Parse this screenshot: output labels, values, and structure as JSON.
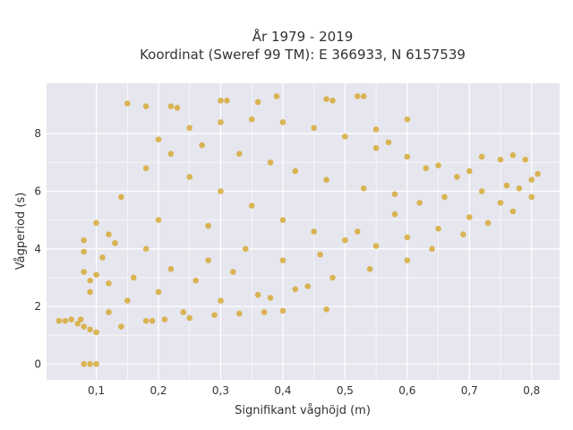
{
  "chart_data": {
    "type": "scatter",
    "title_line1": "År 1979 - 2019",
    "title_line2": "Koordinat (Sweref 99 TM): E 366933, N 6157539",
    "xlabel": "Signifikant våghöjd (m)",
    "ylabel": "Vågperiod (s)",
    "xlim": [
      0.02,
      0.845
    ],
    "ylim": [
      -0.55,
      9.75
    ],
    "x_ticks": [
      "0,1",
      "0,2",
      "0,3",
      "0,4",
      "0,5",
      "0,6",
      "0,7",
      "0,8"
    ],
    "y_ticks": [
      "0",
      "2",
      "4",
      "6",
      "8"
    ],
    "x_tick_values": [
      0.1,
      0.2,
      0.3,
      0.4,
      0.5,
      0.6,
      0.7,
      0.8
    ],
    "y_tick_values": [
      0,
      2,
      4,
      6,
      8
    ],
    "grid": true,
    "marker_color": "#d4a21f",
    "plot_background": "#e6e6ef",
    "series": [
      {
        "values": [
          [
            0.04,
            1.5
          ],
          [
            0.05,
            1.5
          ],
          [
            0.06,
            1.55
          ],
          [
            0.07,
            1.4
          ],
          [
            0.075,
            1.55
          ],
          [
            0.08,
            1.3
          ],
          [
            0.08,
            0.0
          ],
          [
            0.09,
            0.0
          ],
          [
            0.1,
            0.0
          ],
          [
            0.08,
            4.3
          ],
          [
            0.08,
            3.9
          ],
          [
            0.08,
            3.2
          ],
          [
            0.09,
            2.9
          ],
          [
            0.09,
            2.5
          ],
          [
            0.1,
            3.1
          ],
          [
            0.1,
            4.9
          ],
          [
            0.11,
            3.7
          ],
          [
            0.12,
            4.5
          ],
          [
            0.12,
            2.8
          ],
          [
            0.13,
            4.2
          ],
          [
            0.14,
            5.8
          ],
          [
            0.15,
            9.05
          ],
          [
            0.18,
            8.95
          ],
          [
            0.22,
            8.95
          ],
          [
            0.23,
            8.9
          ],
          [
            0.3,
            9.15
          ],
          [
            0.31,
            9.15
          ],
          [
            0.36,
            9.1
          ],
          [
            0.39,
            9.3
          ],
          [
            0.47,
            9.2
          ],
          [
            0.48,
            9.15
          ],
          [
            0.52,
            9.3
          ],
          [
            0.53,
            9.3
          ],
          [
            0.6,
            8.5
          ],
          [
            0.55,
            8.15
          ],
          [
            0.57,
            7.7
          ],
          [
            0.63,
            6.8
          ],
          [
            0.68,
            6.5
          ],
          [
            0.72,
            7.2
          ],
          [
            0.75,
            7.1
          ],
          [
            0.77,
            7.25
          ],
          [
            0.79,
            7.1
          ],
          [
            0.81,
            6.6
          ],
          [
            0.8,
            5.8
          ],
          [
            0.77,
            5.3
          ],
          [
            0.73,
            4.9
          ],
          [
            0.69,
            4.5
          ],
          [
            0.64,
            4.0
          ],
          [
            0.6,
            3.6
          ],
          [
            0.54,
            3.3
          ],
          [
            0.48,
            3.0
          ],
          [
            0.42,
            2.6
          ],
          [
            0.36,
            2.4
          ],
          [
            0.3,
            2.2
          ],
          [
            0.24,
            1.8
          ],
          [
            0.18,
            1.5
          ],
          [
            0.14,
            1.3
          ],
          [
            0.1,
            1.1
          ],
          [
            0.09,
            1.2
          ],
          [
            0.19,
            1.5
          ],
          [
            0.21,
            1.55
          ],
          [
            0.25,
            1.6
          ],
          [
            0.29,
            1.7
          ],
          [
            0.33,
            1.75
          ],
          [
            0.37,
            1.8
          ],
          [
            0.4,
            1.85
          ],
          [
            0.47,
            1.9
          ],
          [
            0.38,
            2.3
          ],
          [
            0.44,
            2.7
          ],
          [
            0.2,
            7.8
          ],
          [
            0.25,
            8.2
          ],
          [
            0.3,
            8.4
          ],
          [
            0.35,
            8.5
          ],
          [
            0.4,
            8.4
          ],
          [
            0.45,
            8.2
          ],
          [
            0.5,
            7.9
          ],
          [
            0.55,
            7.5
          ],
          [
            0.6,
            7.2
          ],
          [
            0.65,
            6.9
          ],
          [
            0.7,
            6.7
          ],
          [
            0.25,
            6.5
          ],
          [
            0.3,
            6.0
          ],
          [
            0.35,
            5.5
          ],
          [
            0.4,
            5.0
          ],
          [
            0.45,
            4.6
          ],
          [
            0.5,
            4.3
          ],
          [
            0.55,
            4.1
          ],
          [
            0.6,
            4.4
          ],
          [
            0.65,
            4.7
          ],
          [
            0.7,
            5.1
          ],
          [
            0.75,
            5.6
          ],
          [
            0.78,
            6.1
          ],
          [
            0.2,
            5.0
          ],
          [
            0.18,
            4.0
          ],
          [
            0.16,
            3.0
          ],
          [
            0.22,
            3.3
          ],
          [
            0.28,
            3.6
          ],
          [
            0.34,
            4.0
          ],
          [
            0.28,
            4.8
          ],
          [
            0.15,
            2.2
          ],
          [
            0.12,
            1.8
          ],
          [
            0.2,
            2.5
          ],
          [
            0.26,
            2.9
          ],
          [
            0.32,
            3.2
          ],
          [
            0.4,
            3.6
          ],
          [
            0.46,
            3.8
          ],
          [
            0.52,
            4.6
          ],
          [
            0.58,
            5.2
          ],
          [
            0.62,
            5.6
          ],
          [
            0.66,
            5.8
          ],
          [
            0.72,
            6.0
          ],
          [
            0.76,
            6.2
          ],
          [
            0.8,
            6.4
          ],
          [
            0.18,
            6.8
          ],
          [
            0.22,
            7.3
          ],
          [
            0.27,
            7.6
          ],
          [
            0.33,
            7.3
          ],
          [
            0.38,
            7.0
          ],
          [
            0.42,
            6.7
          ],
          [
            0.47,
            6.4
          ],
          [
            0.53,
            6.1
          ],
          [
            0.58,
            5.9
          ]
        ]
      }
    ]
  }
}
